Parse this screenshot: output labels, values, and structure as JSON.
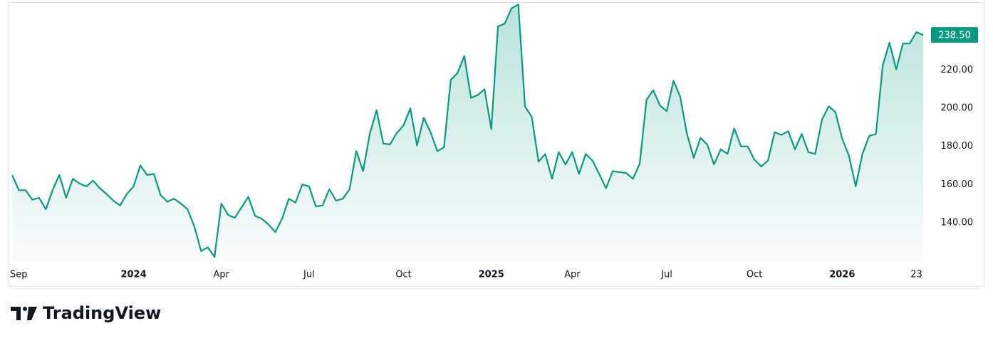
{
  "chart_data": {
    "type": "area",
    "color": "#089981",
    "categories": [
      null,
      "Sep",
      null,
      null,
      null,
      null,
      null,
      null,
      null,
      null,
      null,
      null,
      null,
      null,
      null,
      null,
      null,
      null,
      "2024",
      null,
      null,
      null,
      null,
      null,
      null,
      null,
      null,
      null,
      null,
      null,
      null,
      "Apr",
      null,
      null,
      null,
      null,
      null,
      null,
      null,
      null,
      null,
      null,
      null,
      null,
      "Jul",
      null,
      null,
      null,
      null,
      null,
      null,
      null,
      null,
      null,
      null,
      null,
      null,
      null,
      "Oct",
      null,
      null,
      null,
      null,
      null,
      null,
      null,
      null,
      null,
      null,
      null,
      null,
      "2025",
      null,
      null,
      null,
      null,
      null,
      null,
      null,
      null,
      null,
      null,
      null,
      "Apr",
      null,
      null,
      null,
      null,
      null,
      null,
      null,
      null,
      null,
      null,
      null,
      null,
      null,
      "Jul",
      null,
      null,
      null,
      null,
      null,
      null,
      null,
      null,
      null,
      null,
      null,
      null,
      "Oct",
      null,
      null,
      null,
      null,
      null,
      null,
      null,
      null,
      null,
      null,
      null,
      null,
      "2026",
      null,
      null,
      null,
      null,
      null,
      null,
      null,
      null,
      null,
      null,
      "23",
      null
    ],
    "values": [
      165,
      157,
      157,
      152,
      153,
      147,
      157,
      165,
      153,
      163,
      160.5,
      159,
      162,
      158,
      155,
      151.5,
      149,
      155,
      159,
      170,
      165,
      165.5,
      154.5,
      151,
      152.5,
      150,
      147,
      138,
      125,
      127,
      122,
      150,
      144,
      142.5,
      148,
      153.5,
      143.5,
      142,
      139,
      135,
      142,
      152.5,
      150.5,
      160,
      159,
      148.5,
      149,
      157.5,
      151.5,
      152.5,
      157.5,
      177.5,
      167,
      186.5,
      199,
      181.5,
      181,
      187,
      191,
      200,
      180.5,
      195,
      187.5,
      177.5,
      179.5,
      215,
      218.5,
      227.5,
      205.5,
      207,
      210,
      189,
      243,
      244.5,
      252.5,
      254.5,
      201,
      195.5,
      172,
      176,
      163,
      177,
      170.5,
      177,
      165.5,
      176,
      172.5,
      165.5,
      158,
      167,
      166.5,
      166,
      163,
      171,
      204.5,
      209.5,
      201.5,
      198.5,
      214.5,
      206,
      186.5,
      174,
      184.5,
      181,
      170.5,
      178.5,
      176,
      189.5,
      180,
      180,
      173,
      169.5,
      172.5,
      187.5,
      186,
      188,
      178.5,
      186.5,
      177,
      176,
      194,
      201,
      198,
      184,
      175,
      159,
      176,
      185.5,
      186.5,
      222.5,
      234.5,
      220.5,
      234,
      234,
      240,
      238.5
    ],
    "ylim": [
      119,
      255
    ],
    "yticks": [
      {
        "value": 140,
        "label": "140.00"
      },
      {
        "value": 160,
        "label": "160.00"
      },
      {
        "value": 180,
        "label": "180.00"
      },
      {
        "value": 200,
        "label": "200.00"
      },
      {
        "value": 220,
        "label": "220.00"
      }
    ],
    "price_tag": {
      "value": 238.5,
      "label": "238.50"
    },
    "grid": false
  },
  "branding": "TradingView"
}
